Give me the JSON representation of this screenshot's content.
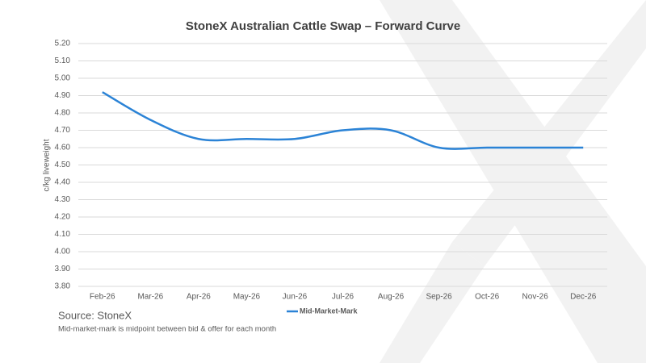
{
  "chart_data": {
    "type": "line",
    "title": "StoneX Australian Cattle Swap – Forward Curve",
    "y_label": "c/kg liveweight",
    "categories": [
      "Feb-26",
      "Mar-26",
      "Apr-26",
      "May-26",
      "Jun-26",
      "Jul-26",
      "Aug-26",
      "Sep-26",
      "Oct-26",
      "Nov-26",
      "Dec-26"
    ],
    "series": [
      {
        "name": "Mid-Market-Mark",
        "color": "#2b83d6",
        "values": [
          4.92,
          4.76,
          4.65,
          4.65,
          4.65,
          4.7,
          4.7,
          4.6,
          4.6,
          4.6,
          4.6
        ]
      }
    ],
    "ylim": [
      3.8,
      5.2
    ],
    "yticks": [
      {
        "value": 3.8,
        "label": "3.80"
      },
      {
        "value": 3.9,
        "label": "3.90"
      },
      {
        "value": 4.0,
        "label": "4.00"
      },
      {
        "value": 4.1,
        "label": "4.10"
      },
      {
        "value": 4.2,
        "label": "4.20"
      },
      {
        "value": 4.3,
        "label": "4.30"
      },
      {
        "value": 4.4,
        "label": "4.40"
      },
      {
        "value": 4.5,
        "label": "4.50"
      },
      {
        "value": 4.6,
        "label": "4.60"
      },
      {
        "value": 4.7,
        "label": "4.70"
      },
      {
        "value": 4.8,
        "label": "4.80"
      },
      {
        "value": 4.9,
        "label": "4.90"
      },
      {
        "value": 5.0,
        "label": "5.00"
      },
      {
        "value": 5.1,
        "label": "5.10"
      },
      {
        "value": 5.2,
        "label": "5.20"
      }
    ],
    "grid": true,
    "source": "Source: StoneX",
    "note": "Mid-market-mark is midpoint between bid & offer for each month"
  }
}
